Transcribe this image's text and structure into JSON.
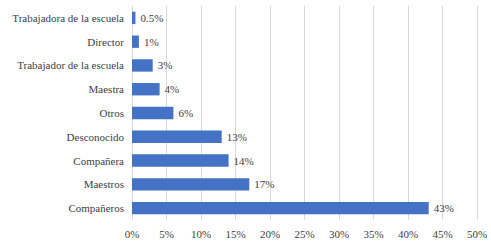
{
  "chart_data": {
    "type": "bar",
    "orientation": "horizontal",
    "categories": [
      "Trabajadora de la escuela",
      "Director",
      "Trabajador de la escuela",
      "Maestra",
      "Otros",
      "Desconocido",
      "Compañera",
      "Maestros",
      "Compañeros"
    ],
    "values": [
      0.5,
      1,
      3,
      4,
      6,
      13,
      14,
      17,
      43
    ],
    "value_labels": [
      "0.5%",
      "1%",
      "3%",
      "4%",
      "6%",
      "13%",
      "14%",
      "17%",
      "43%"
    ],
    "color": "#4472c4",
    "xlim": [
      0,
      50
    ],
    "xticks": [
      {
        "value": 0,
        "label": "0%"
      },
      {
        "value": 5,
        "label": "5%"
      },
      {
        "value": 10,
        "label": "10%"
      },
      {
        "value": 15,
        "label": "15%"
      },
      {
        "value": 20,
        "label": "20%"
      },
      {
        "value": 25,
        "label": "25%"
      },
      {
        "value": 30,
        "label": "30%"
      },
      {
        "value": 35,
        "label": "35%"
      },
      {
        "value": 40,
        "label": "40%"
      },
      {
        "value": 45,
        "label": "45%"
      },
      {
        "value": 50,
        "label": "50%"
      }
    ],
    "grid": true,
    "data_labels": true
  }
}
